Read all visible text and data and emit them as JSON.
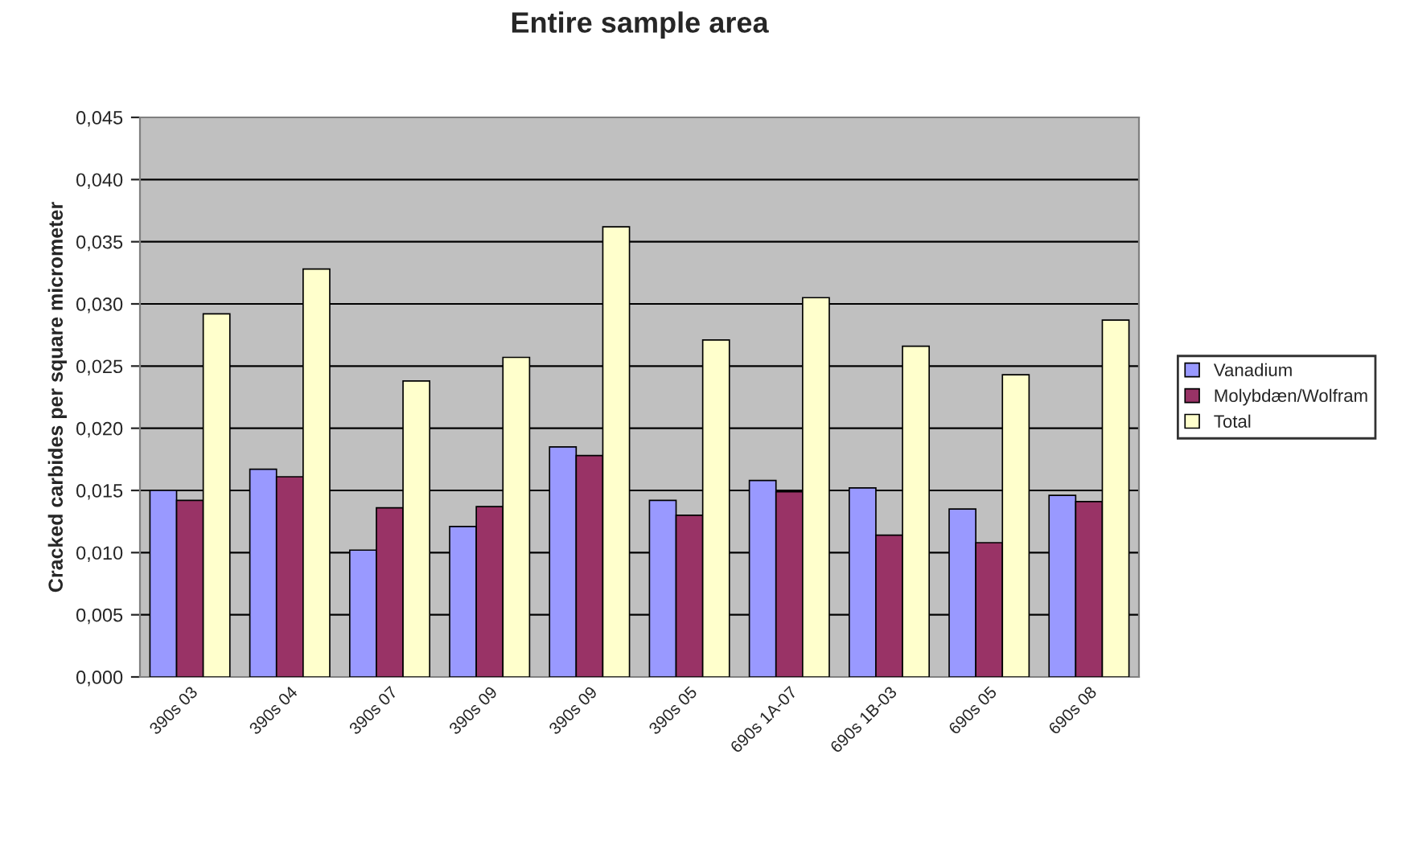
{
  "chart_data": {
    "type": "bar",
    "title": "Entire sample area",
    "ylabel": "Cracked carbides per square micrometer",
    "categories": [
      "390s 03",
      "390s 04",
      "390s 07",
      "390s 09",
      "390s 09",
      "390s 05",
      "690s 1A-07",
      "690s 1B-03",
      "690s 05",
      "690s 08"
    ],
    "series": [
      {
        "name": "Vanadium",
        "color": "#9999ff",
        "values": [
          0.015,
          0.0167,
          0.0102,
          0.0121,
          0.0185,
          0.0142,
          0.0158,
          0.0152,
          0.0135,
          0.0146
        ]
      },
      {
        "name": "Molybdæn/Wolfram",
        "color": "#993366",
        "values": [
          0.0142,
          0.0161,
          0.0136,
          0.0137,
          0.0178,
          0.013,
          0.0149,
          0.0114,
          0.0108,
          0.0141
        ]
      },
      {
        "name": "Total",
        "color": "#ffffcc",
        "values": [
          0.0292,
          0.0328,
          0.0238,
          0.0257,
          0.0362,
          0.0271,
          0.0305,
          0.0266,
          0.0243,
          0.0287
        ]
      }
    ],
    "ylim": [
      0,
      0.045
    ],
    "yticks": [
      {
        "value": 0,
        "label": "0,000"
      },
      {
        "value": 0.005,
        "label": "0,005"
      },
      {
        "value": 0.01,
        "label": "0,010"
      },
      {
        "value": 0.015,
        "label": "0,015"
      },
      {
        "value": 0.02,
        "label": "0,020"
      },
      {
        "value": 0.025,
        "label": "0,025"
      },
      {
        "value": 0.03,
        "label": "0,030"
      },
      {
        "value": 0.035,
        "label": "0,035"
      },
      {
        "value": 0.04,
        "label": "0,040"
      },
      {
        "value": 0.045,
        "label": "0,045"
      }
    ],
    "grid": "y",
    "legend": "right"
  }
}
